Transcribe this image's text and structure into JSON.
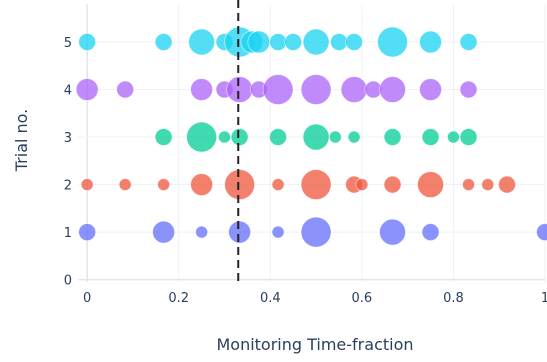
{
  "chart_data": {
    "type": "scatter",
    "title": "",
    "xlabel": "Monitoring Time-fraction",
    "ylabel": "Trial no.",
    "xlim": [
      -0.02,
      1.0
    ],
    "ylim": [
      -0.05,
      5.8
    ],
    "x_ticks": [
      "0",
      "0.2",
      "0.4",
      "0.6",
      "0.8",
      "1"
    ],
    "x_tick_values": [
      0,
      0.2,
      0.4,
      0.6,
      0.8,
      1.0
    ],
    "y_ticks": [
      "0",
      "1",
      "2",
      "3",
      "4",
      "5"
    ],
    "y_tick_values": [
      0,
      1,
      2,
      3,
      4,
      5
    ],
    "grid": true,
    "reference_line": {
      "x": 0.33,
      "style": "dashed",
      "color": "#222222"
    },
    "marker_opacity": 0.75,
    "series": [
      {
        "trial": 1,
        "color": "#636efa",
        "points": [
          {
            "x": 0.0,
            "s": 2
          },
          {
            "x": 0.167,
            "s": 3
          },
          {
            "x": 0.25,
            "s": 1
          },
          {
            "x": 0.333,
            "s": 3
          },
          {
            "x": 0.417,
            "s": 1
          },
          {
            "x": 0.5,
            "s": 5
          },
          {
            "x": 0.667,
            "s": 4
          },
          {
            "x": 0.75,
            "s": 2
          },
          {
            "x": 1.0,
            "s": 2
          }
        ]
      },
      {
        "trial": 2,
        "color": "#ef553b",
        "points": [
          {
            "x": 0.0,
            "s": 1
          },
          {
            "x": 0.083,
            "s": 1
          },
          {
            "x": 0.167,
            "s": 1
          },
          {
            "x": 0.25,
            "s": 3
          },
          {
            "x": 0.333,
            "s": 5
          },
          {
            "x": 0.417,
            "s": 1
          },
          {
            "x": 0.5,
            "s": 5
          },
          {
            "x": 0.583,
            "s": 2
          },
          {
            "x": 0.6,
            "s": 1
          },
          {
            "x": 0.667,
            "s": 2
          },
          {
            "x": 0.75,
            "s": 4
          },
          {
            "x": 0.833,
            "s": 1
          },
          {
            "x": 0.875,
            "s": 1
          },
          {
            "x": 0.917,
            "s": 2
          }
        ]
      },
      {
        "trial": 3,
        "color": "#00cc96",
        "points": [
          {
            "x": 0.167,
            "s": 2
          },
          {
            "x": 0.25,
            "s": 5
          },
          {
            "x": 0.3,
            "s": 1
          },
          {
            "x": 0.333,
            "s": 2
          },
          {
            "x": 0.417,
            "s": 2
          },
          {
            "x": 0.5,
            "s": 4
          },
          {
            "x": 0.542,
            "s": 1
          },
          {
            "x": 0.583,
            "s": 1
          },
          {
            "x": 0.667,
            "s": 2
          },
          {
            "x": 0.75,
            "s": 2
          },
          {
            "x": 0.8,
            "s": 1
          },
          {
            "x": 0.833,
            "s": 2
          }
        ]
      },
      {
        "trial": 4,
        "color": "#ab63fa",
        "points": [
          {
            "x": 0.0,
            "s": 3
          },
          {
            "x": 0.083,
            "s": 2
          },
          {
            "x": 0.25,
            "s": 3
          },
          {
            "x": 0.3,
            "s": 2
          },
          {
            "x": 0.333,
            "s": 4
          },
          {
            "x": 0.375,
            "s": 2
          },
          {
            "x": 0.417,
            "s": 5
          },
          {
            "x": 0.5,
            "s": 5
          },
          {
            "x": 0.583,
            "s": 4
          },
          {
            "x": 0.625,
            "s": 2
          },
          {
            "x": 0.667,
            "s": 4
          },
          {
            "x": 0.75,
            "s": 3
          },
          {
            "x": 0.833,
            "s": 2
          }
        ]
      },
      {
        "trial": 5,
        "color": "#19d3f3",
        "points": [
          {
            "x": 0.0,
            "s": 2
          },
          {
            "x": 0.167,
            "s": 2
          },
          {
            "x": 0.25,
            "s": 4
          },
          {
            "x": 0.3,
            "s": 2
          },
          {
            "x": 0.333,
            "s": 5
          },
          {
            "x": 0.36,
            "s": 3
          },
          {
            "x": 0.375,
            "s": 3
          },
          {
            "x": 0.417,
            "s": 2
          },
          {
            "x": 0.45,
            "s": 2
          },
          {
            "x": 0.5,
            "s": 4
          },
          {
            "x": 0.55,
            "s": 2
          },
          {
            "x": 0.583,
            "s": 2
          },
          {
            "x": 0.667,
            "s": 5
          },
          {
            "x": 0.75,
            "s": 3
          },
          {
            "x": 0.833,
            "s": 2
          }
        ]
      }
    ]
  }
}
